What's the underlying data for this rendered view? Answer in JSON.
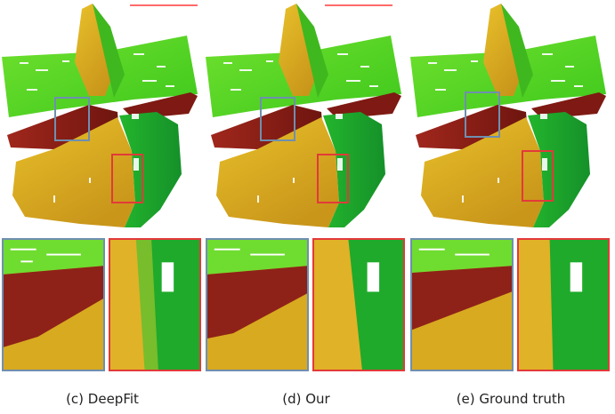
{
  "figure": {
    "panels": [
      {
        "id": "c",
        "caption": "(c) DeepFit"
      },
      {
        "id": "d",
        "caption": "(d) Our"
      },
      {
        "id": "e",
        "caption": "(e) Ground truth"
      }
    ],
    "colors": {
      "top_green": "#4fd61f",
      "light_green": "#7de33a",
      "dark_red": "#8c1f17",
      "orange_yellow": "#d9a81e",
      "yellow": "#e0b92a",
      "dark_green": "#1fa829",
      "highlight_blue": "#6f8fb0",
      "highlight_red": "#e23a3a"
    }
  }
}
